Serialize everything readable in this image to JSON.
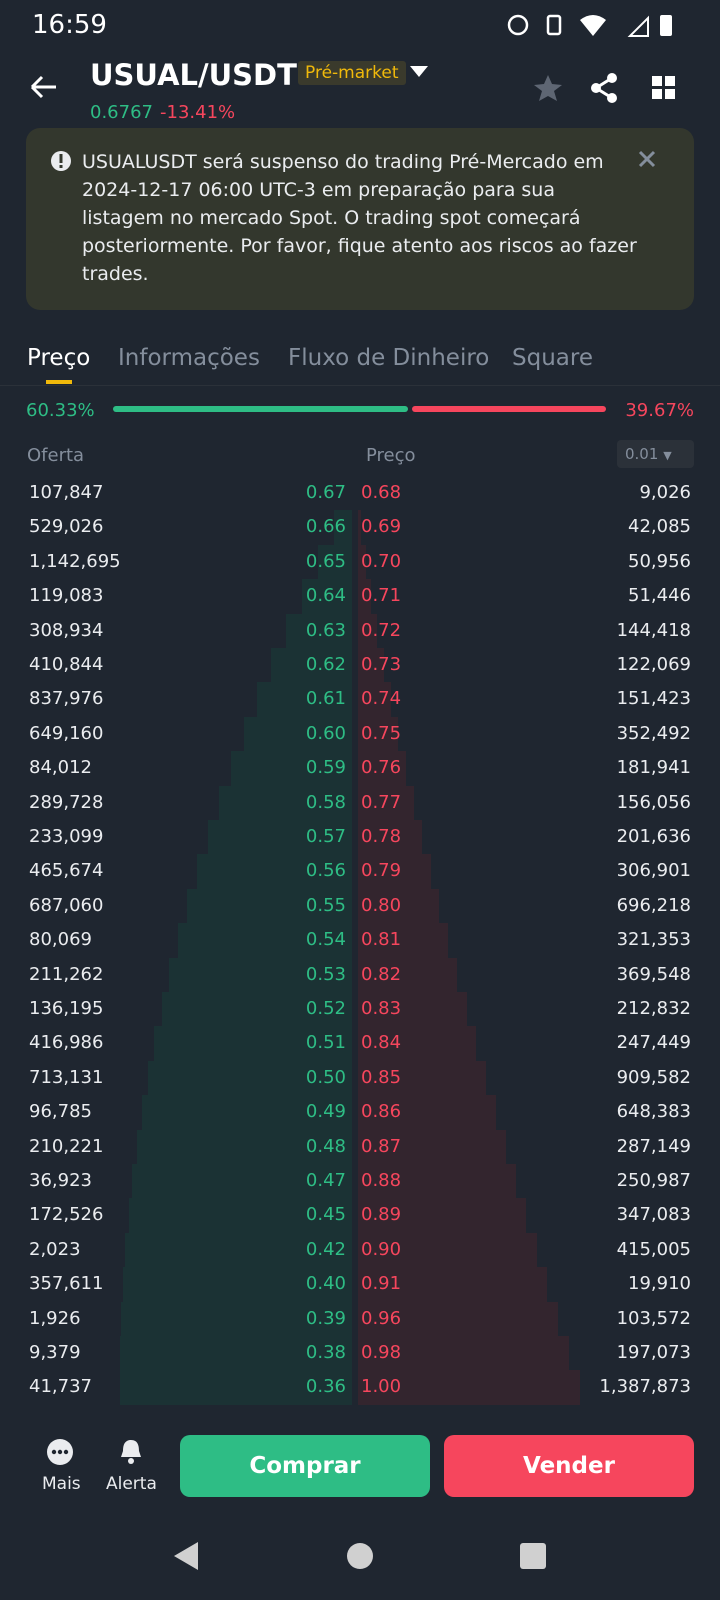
{
  "status_bar": {
    "time": "16:59"
  },
  "header": {
    "pair": "USUAL/USDT",
    "badge": "Pré-market",
    "price": "0.6767",
    "change": "-13.41%"
  },
  "notice": {
    "text": "USUALUSDT será suspenso do trading Pré-Mercado em 2024-12-17 06:00 UTC-3 em preparação para sua listagem no mercado Spot. O trading spot começará posteriormente. Por favor, fique atento aos riscos ao fazer trades."
  },
  "tabs": [
    "Preço",
    "Informações",
    "Fluxo de Dinheiro",
    "Square"
  ],
  "ratio": {
    "buy": "60.33%",
    "sell": "39.67%"
  },
  "order_book": {
    "headers": {
      "bid": "Oferta",
      "price": "Preço",
      "step": "0.01"
    },
    "rows": [
      [
        "107,847",
        "0.67",
        "0.68",
        "9,026"
      ],
      [
        "529,026",
        "0.66",
        "0.69",
        "42,085"
      ],
      [
        "1,142,695",
        "0.65",
        "0.70",
        "50,956"
      ],
      [
        "119,083",
        "0.64",
        "0.71",
        "51,446"
      ],
      [
        "308,934",
        "0.63",
        "0.72",
        "144,418"
      ],
      [
        "410,844",
        "0.62",
        "0.73",
        "122,069"
      ],
      [
        "837,976",
        "0.61",
        "0.74",
        "151,423"
      ],
      [
        "649,160",
        "0.60",
        "0.75",
        "352,492"
      ],
      [
        "84,012",
        "0.59",
        "0.76",
        "181,941"
      ],
      [
        "289,728",
        "0.58",
        "0.77",
        "156,056"
      ],
      [
        "233,099",
        "0.57",
        "0.78",
        "201,636"
      ],
      [
        "465,674",
        "0.56",
        "0.79",
        "306,901"
      ],
      [
        "687,060",
        "0.55",
        "0.80",
        "696,218"
      ],
      [
        "80,069",
        "0.54",
        "0.81",
        "321,353"
      ],
      [
        "211,262",
        "0.53",
        "0.82",
        "369,548"
      ],
      [
        "136,195",
        "0.52",
        "0.83",
        "212,832"
      ],
      [
        "416,986",
        "0.51",
        "0.84",
        "247,449"
      ],
      [
        "713,131",
        "0.50",
        "0.85",
        "909,582"
      ],
      [
        "96,785",
        "0.49",
        "0.86",
        "648,383"
      ],
      [
        "210,221",
        "0.48",
        "0.87",
        "287,149"
      ],
      [
        "36,923",
        "0.47",
        "0.88",
        "250,987"
      ],
      [
        "172,526",
        "0.45",
        "0.89",
        "347,083"
      ],
      [
        "2,023",
        "0.42",
        "0.90",
        "415,005"
      ],
      [
        "357,611",
        "0.40",
        "0.91",
        "19,910"
      ],
      [
        "1,926",
        "0.39",
        "0.96",
        "103,572"
      ],
      [
        "9,379",
        "0.38",
        "0.98",
        "197,073"
      ],
      [
        "41,737",
        "0.36",
        "1.00",
        "1,387,873"
      ]
    ]
  },
  "footer": {
    "more": "Mais",
    "alert": "Alerta",
    "buy": "Comprar",
    "sell": "Vender"
  }
}
